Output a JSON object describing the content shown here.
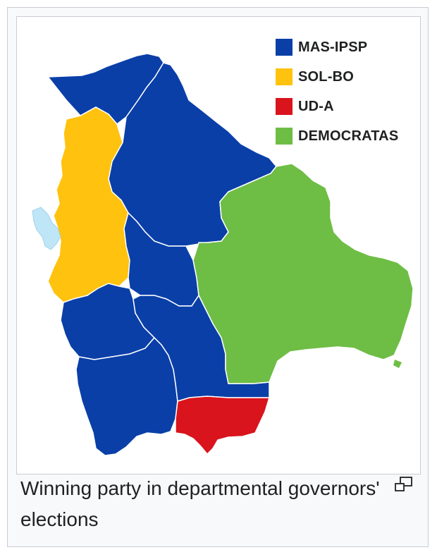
{
  "legend": {
    "items": [
      {
        "label": "MAS-IPSP",
        "color": "#0a3fa8"
      },
      {
        "label": "SOL-BO",
        "color": "#ffc20e"
      },
      {
        "label": "UD-A",
        "color": "#d9141c"
      },
      {
        "label": "DEMOCRATAS",
        "color": "#6ebd45"
      }
    ]
  },
  "colors": {
    "lake": "#bfe6f7",
    "border": "#ffffff"
  },
  "caption": "Winning party in departmental governors' elections",
  "icons": {
    "enlarge": "enlarge-icon"
  }
}
